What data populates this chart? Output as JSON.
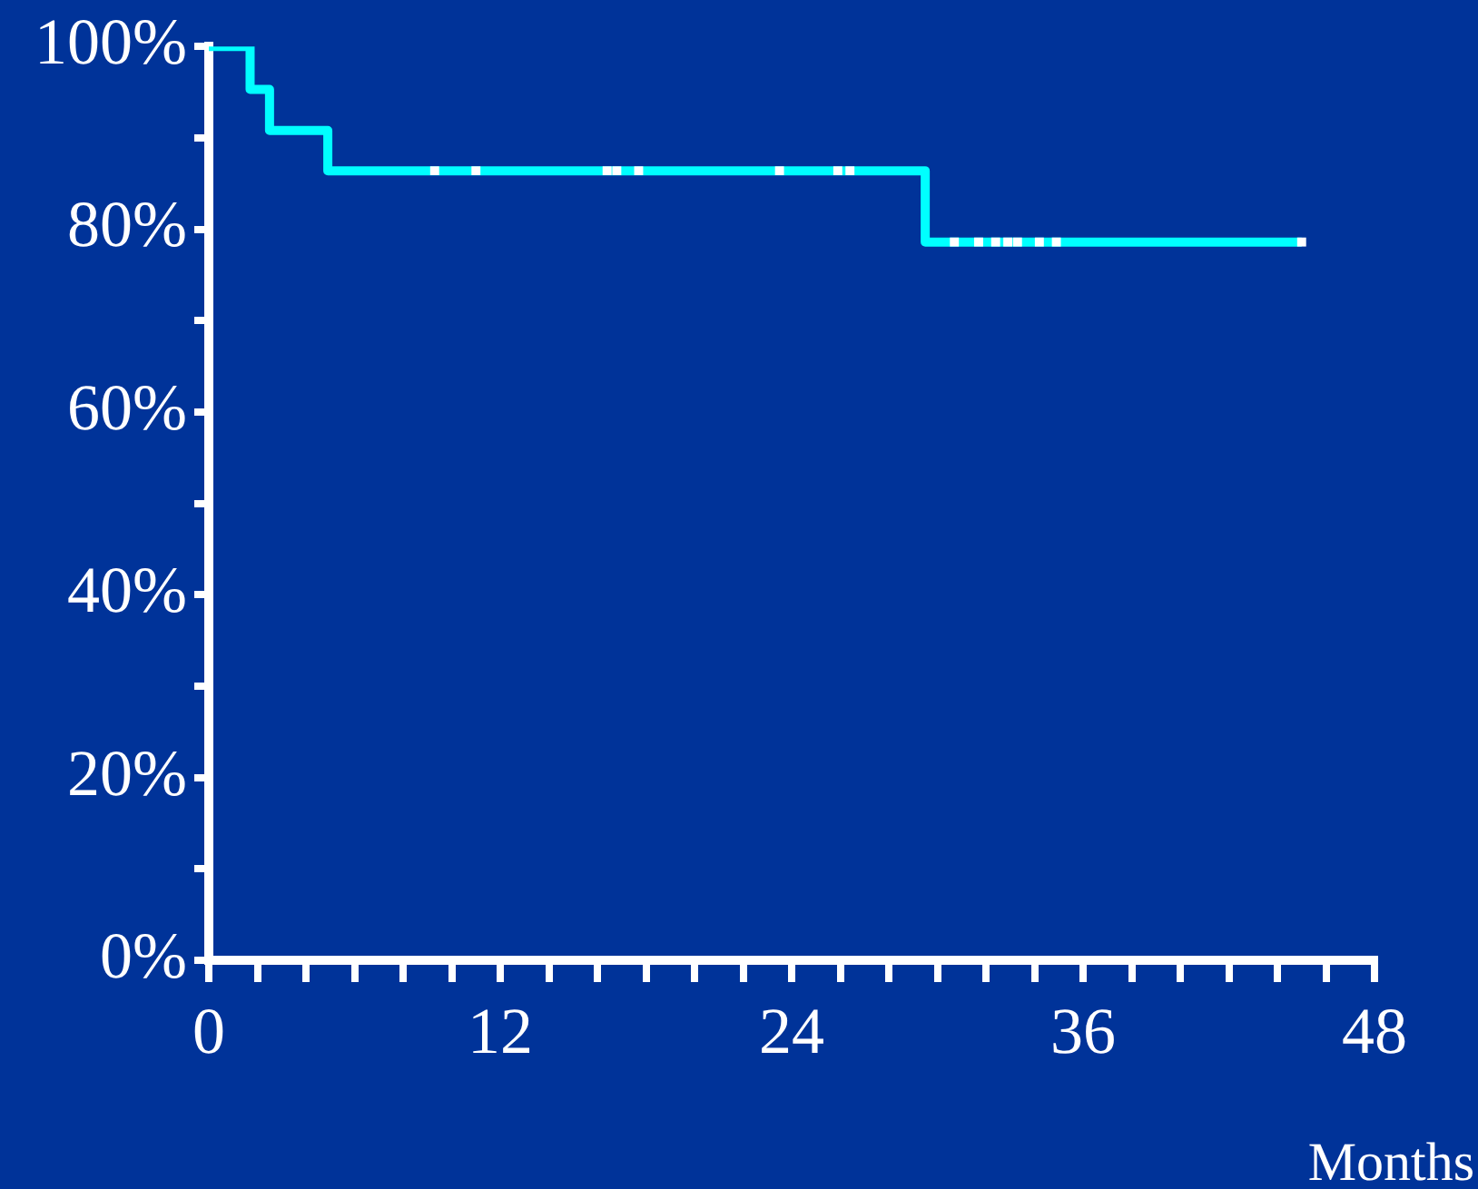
{
  "chart_data": {
    "type": "step",
    "xlabel": "Months",
    "series": [
      {
        "color": "#00ffff",
        "marker": "none",
        "x": [
          0,
          1.7,
          2.5,
          4.9,
          29.5,
          45
        ],
        "values": [
          100,
          95.3,
          90.8,
          86.4,
          78.6,
          78.6
        ]
      },
      {
        "type": "scatter",
        "color": "#ffffff",
        "marker": "square",
        "x": [
          9.3,
          11.0,
          16.4,
          16.8,
          17.7,
          23.5,
          25.9,
          26.4,
          30.7,
          31.7,
          32.4,
          32.9,
          33.3,
          34.2,
          34.9,
          45.0
        ],
        "values": [
          86.4,
          86.4,
          86.4,
          86.4,
          86.4,
          86.4,
          86.4,
          86.4,
          78.6,
          78.6,
          78.6,
          78.6,
          78.6,
          78.6,
          78.6,
          78.6
        ]
      }
    ],
    "xlim": [
      0,
      48
    ],
    "xticks": [
      0,
      {
        "value": 2,
        "label": null
      },
      {
        "value": 4,
        "label": null
      },
      {
        "value": 6,
        "label": null
      },
      {
        "value": 8,
        "label": null
      },
      {
        "value": 10,
        "label": null
      },
      12,
      {
        "value": 14,
        "label": null
      },
      {
        "value": 16,
        "label": null
      },
      {
        "value": 18,
        "label": null
      },
      {
        "value": 20,
        "label": null
      },
      {
        "value": 22,
        "label": null
      },
      24,
      {
        "value": 26,
        "label": null
      },
      {
        "value": 28,
        "label": null
      },
      {
        "value": 30,
        "label": null
      },
      {
        "value": 32,
        "label": null
      },
      {
        "value": 34,
        "label": null
      },
      36,
      {
        "value": 38,
        "label": null
      },
      {
        "value": 40,
        "label": null
      },
      {
        "value": 42,
        "label": null
      },
      {
        "value": 44,
        "label": null
      },
      {
        "value": 46,
        "label": null
      },
      48
    ],
    "ylim": [
      0,
      100
    ],
    "yticks": [
      {
        "value": 0,
        "label": "0%"
      },
      {
        "value": 10,
        "label": null
      },
      {
        "value": 20,
        "label": "20%"
      },
      {
        "value": 30,
        "label": null
      },
      {
        "value": 40,
        "label": "40%"
      },
      {
        "value": 50,
        "label": null
      },
      {
        "value": 60,
        "label": "60%"
      },
      {
        "value": 70,
        "label": null
      },
      {
        "value": 80,
        "label": "80%"
      },
      {
        "value": 90,
        "label": null
      },
      {
        "value": 100,
        "label": "100%"
      }
    ],
    "grid": false,
    "legend": false
  }
}
